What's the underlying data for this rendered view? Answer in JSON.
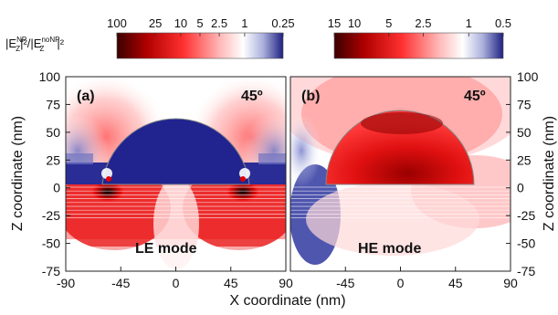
{
  "chart_data": [
    {
      "type": "heatmap",
      "panel_label": "(a)",
      "angle": "45º",
      "mode_label": "LE mode",
      "x_ticks": [
        "-90",
        "-45",
        "0",
        "45",
        "90"
      ],
      "y_ticks": [
        "100",
        "75",
        "50",
        "25",
        "0",
        "-25",
        "-50",
        "-75"
      ],
      "xlim": [
        -90,
        90
      ],
      "ylim": [
        -75,
        100
      ],
      "nanoparticle_radius_nm": 60,
      "colorbar": {
        "label_html": "|E<tspan baseline-shift='super' font-size='9'>NP</tspan><tspan dy='0'>Z</tspan>|²/|E<tspan>noNP</tspan>Z|²",
        "ticks": [
          "100",
          "25",
          "10",
          "5",
          "2.5",
          "1",
          "0.25"
        ],
        "range": [
          0.25,
          100
        ],
        "scale": "log",
        "colors": [
          "#3a0000",
          "#c80000",
          "#ff4040",
          "#ffd0d0",
          "#ffffff",
          "#b8bce0",
          "#1e2080"
        ]
      }
    },
    {
      "type": "heatmap",
      "panel_label": "(b)",
      "angle": "45º",
      "mode_label": "HE mode",
      "x_ticks": [
        "-45",
        "0",
        "45",
        "90"
      ],
      "y_ticks": [
        "100",
        "75",
        "50",
        "25",
        "0",
        "-25",
        "-50",
        "-75"
      ],
      "xlim": [
        -90,
        90
      ],
      "ylim": [
        -75,
        100
      ],
      "nanoparticle_radius_nm": 60,
      "colorbar": {
        "ticks": [
          "15",
          "10",
          "5",
          "2.5",
          "1",
          "0.5"
        ],
        "range": [
          0.5,
          15
        ],
        "scale": "log",
        "colors": [
          "#3a0000",
          "#c80000",
          "#ff4040",
          "#ffd0d0",
          "#ffffff",
          "#b8bce0",
          "#1e2080"
        ]
      }
    }
  ],
  "labels": {
    "xlabel": "X coordinate (nm)",
    "ylabel": "Z coordinate (nm)",
    "colorbar_label": {
      "E1": "|E",
      "sup1": "NP",
      "sub1": "Z",
      "mid": "|²/|E",
      "sup2": "noNP",
      "sub2": "Z",
      "end": "|²"
    }
  }
}
